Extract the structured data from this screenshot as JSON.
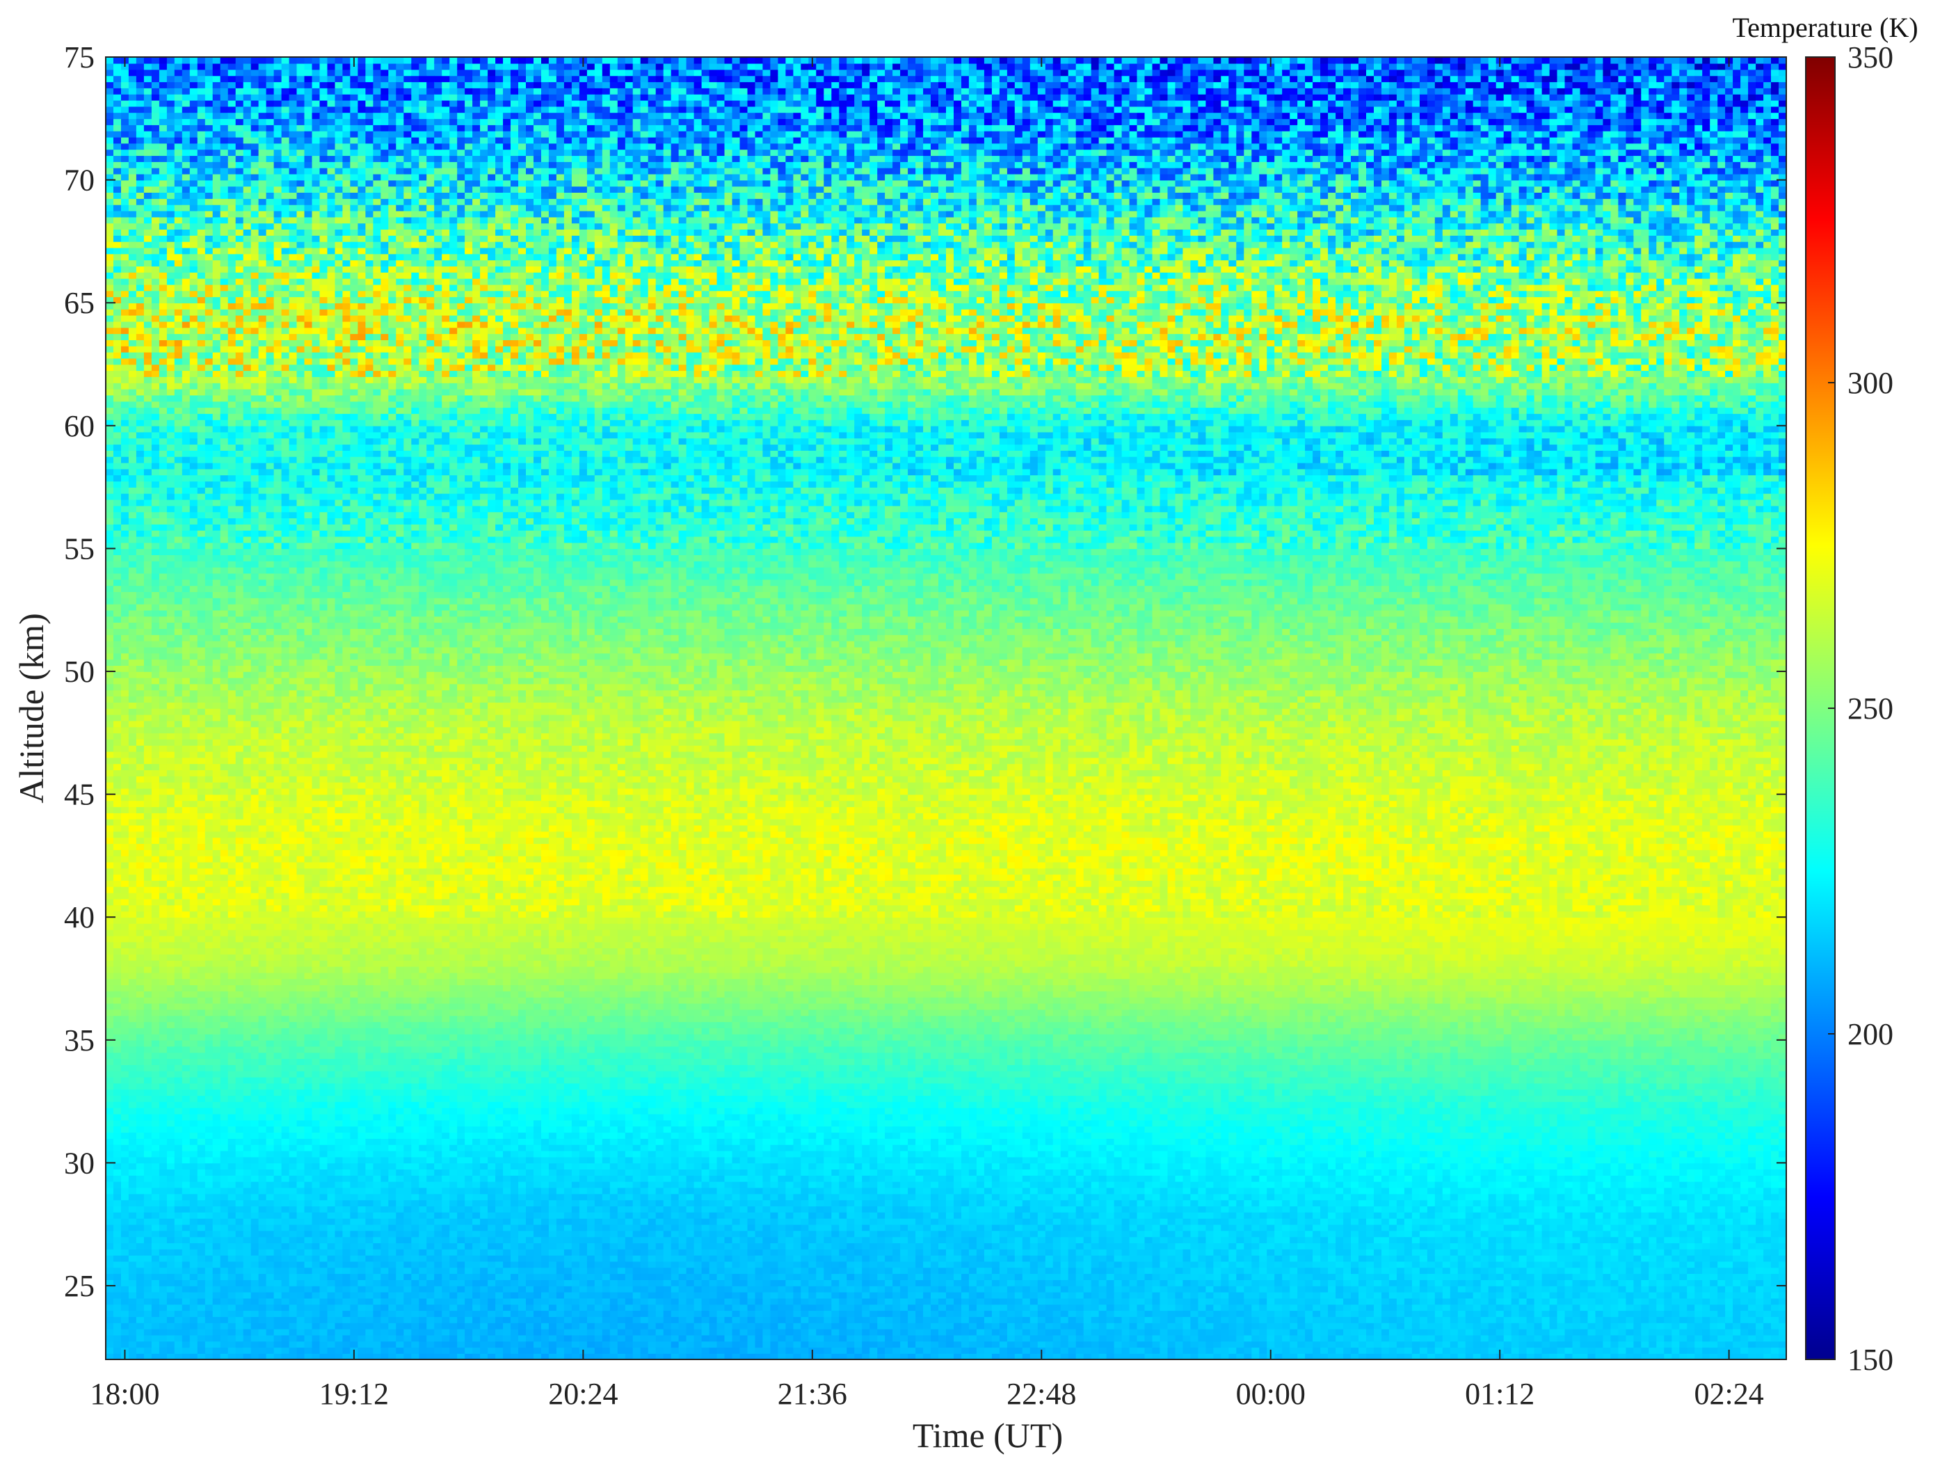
{
  "chart_data": {
    "type": "heatmap",
    "title": "",
    "xlabel": "Time (UT)",
    "ylabel": "Altitude (km)",
    "x_ticks": [
      "18:00",
      "19:12",
      "20:24",
      "21:36",
      "22:48",
      "00:00",
      "01:12",
      "02:24"
    ],
    "x_tick_hours": [
      0,
      1.2,
      2.4,
      3.6,
      4.8,
      6.0,
      7.2,
      8.4
    ],
    "xlim_hours_after_1800": [
      -0.1,
      8.7
    ],
    "y_ticks": [
      25,
      30,
      35,
      40,
      45,
      50,
      55,
      60,
      65,
      70,
      75
    ],
    "ylim": [
      22,
      75
    ],
    "colormap": "jet",
    "colorbar": {
      "title": "Temperature (K)",
      "range": [
        150,
        350
      ],
      "ticks": [
        150,
        200,
        250,
        300,
        350
      ]
    },
    "temperature_profile": {
      "altitude_km": [
        22,
        25,
        28,
        30,
        32,
        35,
        38,
        40,
        43,
        45,
        48,
        50,
        53,
        55,
        58,
        60,
        62,
        64,
        66,
        68,
        70,
        72,
        75
      ],
      "temperature_k": [
        212,
        214,
        217,
        222,
        228,
        243,
        262,
        268,
        270,
        267,
        262,
        255,
        245,
        237,
        228,
        232,
        260,
        268,
        255,
        240,
        225,
        210,
        200
      ]
    }
  }
}
